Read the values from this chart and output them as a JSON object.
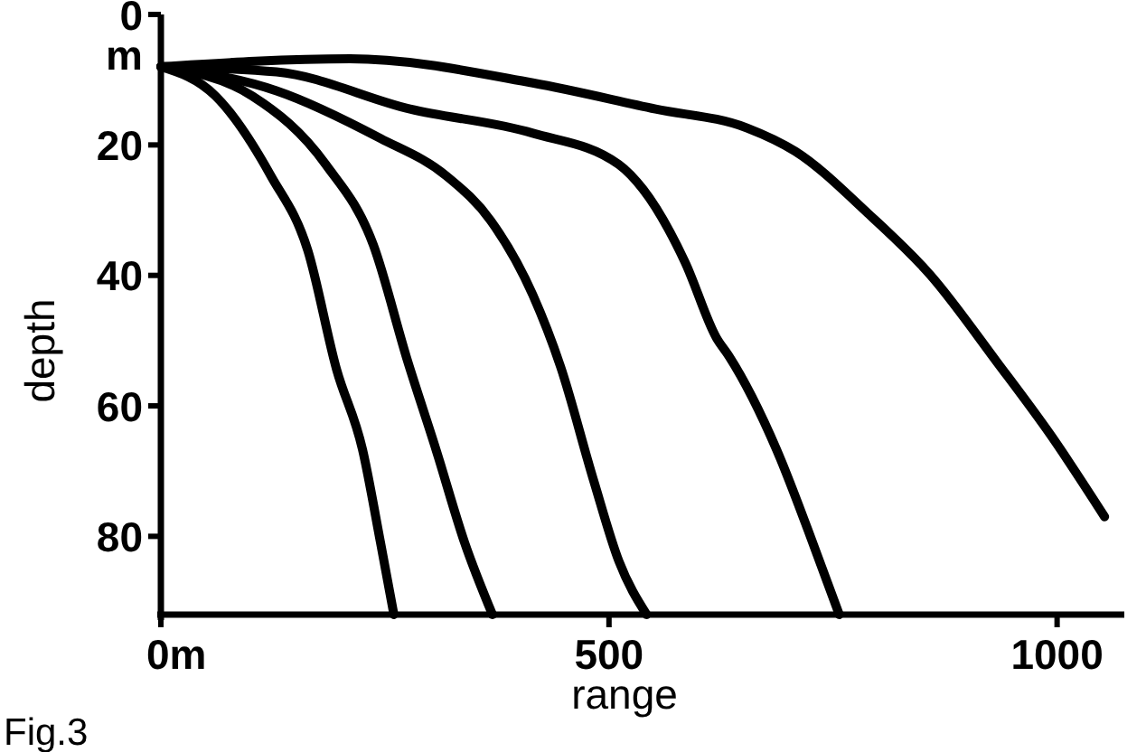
{
  "chart_data": {
    "type": "line",
    "xlabel": "range",
    "ylabel": "depth",
    "annotations": [
      "m",
      "Fig.3"
    ],
    "xlim": [
      0,
      1075
    ],
    "ylim": [
      92,
      0
    ],
    "xticks": [
      {
        "value": 0,
        "label": "0m"
      },
      500,
      1000
    ],
    "yticks": [
      0,
      20,
      40,
      60,
      80
    ],
    "grid": false,
    "marker": "none",
    "line_style": "solid",
    "series": [
      {
        "color": "#000000",
        "x": [
          0,
          61,
          123,
          164,
          196,
          225,
          245,
          260
        ],
        "values": [
          8,
          12.5,
          24.8,
          36.2,
          54.4,
          66.7,
          80.9,
          92
        ]
      },
      {
        "color": "#000000",
        "x": [
          0,
          102,
          184,
          237,
          275,
          307,
          339,
          370
        ],
        "values": [
          8,
          12.5,
          23,
          35.3,
          53,
          66.7,
          81,
          92
        ]
      },
      {
        "color": "#000000",
        "x": [
          0,
          129,
          245,
          319,
          368,
          415,
          446,
          483,
          511,
          542
        ],
        "values": [
          8,
          11.7,
          19,
          24.8,
          31.6,
          43,
          54,
          71.5,
          83.8,
          92
        ]
      },
      {
        "color": "#000000",
        "x": [
          0,
          129,
          278,
          415,
          511,
          538,
          585,
          620,
          634,
          687,
          722,
          757
        ],
        "values": [
          8,
          8.8,
          14.5,
          18.2,
          23,
          26.8,
          38,
          49.6,
          52.4,
          66.7,
          79,
          92
        ]
      },
      {
        "color": "#000000",
        "x": [
          0,
          211,
          415,
          552,
          654,
          708,
          789,
          859,
          933,
          994,
          1053
        ],
        "values": [
          8,
          6.8,
          10.5,
          14.5,
          17.4,
          21,
          30.5,
          40,
          53.3,
          64.7,
          77
        ]
      }
    ]
  }
}
